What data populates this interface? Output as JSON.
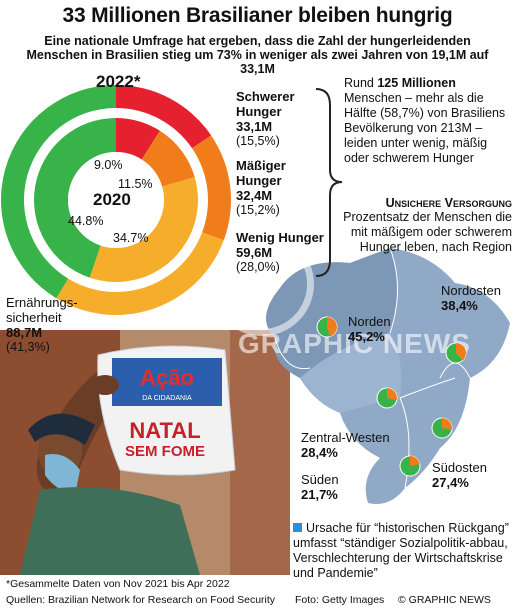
{
  "title": "33 Millionen Brasilianer bleiben hungrig",
  "subtitle": "Eine nationale Umfrage hat ergeben, dass die Zahl der hungerleidenden Menschen in Brasilien stieg um 73% in weniger als zwei Jahren von 19,1M auf 33,1M",
  "colors": {
    "severe": "#e5202f",
    "moderate": "#f07d19",
    "mild": "#f6ad2b",
    "secure": "#38b34a",
    "map": "#8fa9c7",
    "map_dark": "#7d97b6",
    "photo_bg": "#9c5a3a"
  },
  "chart_data": [
    {
      "type": "pie",
      "title": "2022*",
      "categories": [
        "Schwerer Hunger",
        "Mäßiger Hunger",
        "Wenig Hunger",
        "Ernährungssicherheit"
      ],
      "values_millions": [
        33.1,
        32.4,
        59.6,
        88.7
      ],
      "values_percent": [
        15.5,
        15.2,
        28.0,
        41.3
      ]
    },
    {
      "type": "pie",
      "title": "2020",
      "categories": [
        "Schwerer Hunger",
        "Mäßiger Hunger",
        "Wenig Hunger",
        "Ernährungssicherheit"
      ],
      "values_percent": [
        9.0,
        11.5,
        34.7,
        44.8
      ]
    },
    {
      "type": "pie",
      "title": "Unsichere Versorgung",
      "categories": [
        "Norden",
        "Nordosten",
        "Zentral-Westen",
        "Südosten",
        "Süden"
      ],
      "values_percent": [
        45.2,
        38.4,
        28.4,
        27.4,
        21.7
      ]
    }
  ],
  "donut_labels": {
    "year2022": "2022*",
    "year2020": "2020",
    "severe_name": "Schwerer Hunger",
    "severe_val": "33,1M",
    "severe_pct": "(15,5%)",
    "moderate_name": "Mäßiger Hunger",
    "moderate_val": "32,4M",
    "moderate_pct": "(15,2%)",
    "mild_name": "Wenig Hunger",
    "mild_val": "59,6M",
    "mild_pct": "(28,0%)",
    "secure_name": "Ernährungs-sicherheit",
    "secure_val": "88,7M",
    "secure_pct": "(41,3%)",
    "in_severe": "9.0%",
    "in_moderate": "11.5%",
    "in_secure": "44.8%",
    "in_mild": "34.7%"
  },
  "summary": {
    "prefix": "Rund ",
    "bold": "125 Millionen",
    "rest": "Menschen – mehr als die Hälfte (58,7%) von Brasiliens Bevölkerung von 213M – leiden unter wenig, mäßig oder schwerem Hunger"
  },
  "insecure": {
    "heading": "Unsichere Versorgung",
    "text": "Prozentsatz der Menschen die mit mäßigem oder schwerem Hunger leben, nach Region"
  },
  "regions": [
    {
      "name": "Norden",
      "value": "45,2%"
    },
    {
      "name": "Nordosten",
      "value": "38,4%"
    },
    {
      "name": "Zentral-Westen",
      "value": "28,4%"
    },
    {
      "name": "Südosten",
      "value": "27,4%"
    },
    {
      "name": "Süden",
      "value": "21,7%"
    }
  ],
  "cause": "Ursache für “historischen Rückgang” umfasst “ständiger Sozialpolitik-abbau, Verschlechterung der Wirtschaftskrise und Pandemie”",
  "photo": {
    "bag_brand": "Ação",
    "bag_sub": "DA CIDADANIA",
    "bag_line1": "NATAL",
    "bag_line2": "SEM FOME"
  },
  "watermark": "GRAPHIC NEWS",
  "footer": {
    "note": "*Gesammelte Daten von Nov 2021 bis Apr 2022",
    "source": "Quellen: Brazilian Network for Research on Food Security",
    "photo": "Foto: Getty Images",
    "copyright": "© GRAPHIC NEWS"
  }
}
